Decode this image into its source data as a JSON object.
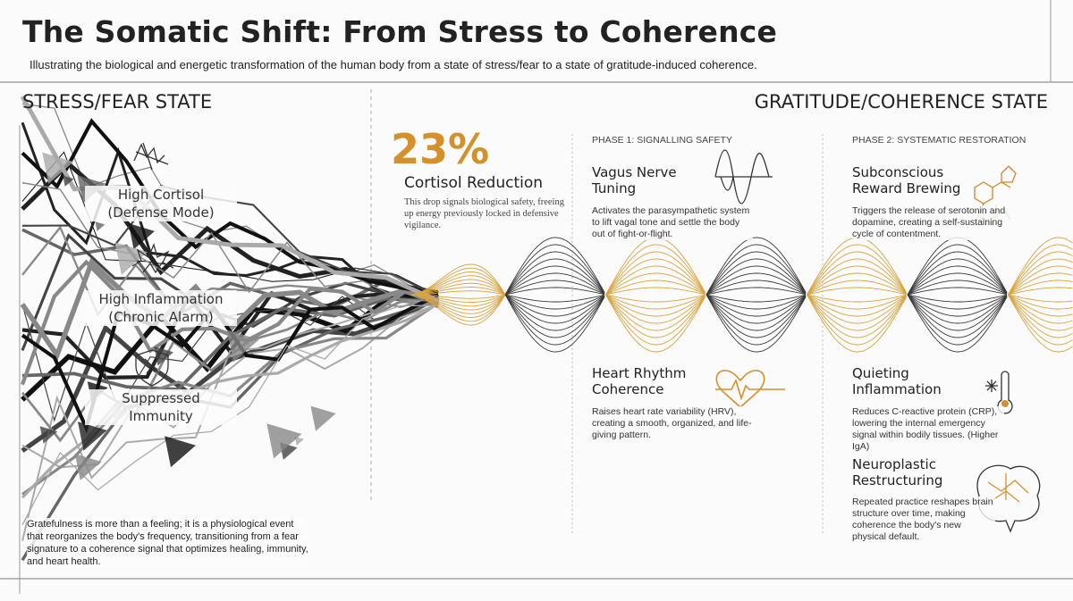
{
  "header": {
    "title": "The Somatic Shift: From Stress to Coherence",
    "subtitle": "Illustrating the biological and energetic transformation of the human body from a state of stress/fear to a state of gratitude-induced coherence."
  },
  "left": {
    "heading": "STRESS/FEAR STATE",
    "items": [
      {
        "lines": [
          "High Cortisol",
          "(Defense Mode)"
        ]
      },
      {
        "lines": [
          "High Inflammation",
          "(Chronic Alarm)"
        ]
      },
      {
        "lines": [
          "Suppressed",
          "Immunity"
        ]
      }
    ],
    "note": "Gratefulness is more than a feeling; it is a physiological event that reorganizes the body's frequency, transitioning from a fear signature to a coherence signal that optimizes healing, immunity, and heart health."
  },
  "right": {
    "heading": "GRATITUDE/COHERENCE STATE",
    "stat": {
      "value": "23%",
      "label": "Cortisol Reduction",
      "text": "This drop signals biological safety, freeing up energy previously locked in defensive vigilance."
    },
    "phases": [
      "PHASE 1: SIGNALLING SAFETY",
      "PHASE 2: SYSTEMATIC RESTORATION"
    ],
    "cards": [
      {
        "title": [
          "Vagus Nerve",
          "Tuning"
        ],
        "text": "Activates the parasympathetic system to lift vagal tone and settle the body out of fight-or-flight."
      },
      {
        "title": [
          "Subconscious",
          "Reward Brewing"
        ],
        "text": "Triggers the release of serotonin and dopamine, creating a self-sustaining cycle of contentment."
      },
      {
        "title": [
          "Heart Rhythm",
          "Coherence"
        ],
        "text": "Raises heart rate variability (HRV), creating a smooth, organized, and life-giving pattern."
      },
      {
        "title": [
          "Quieting",
          "Inflammation"
        ],
        "text": "Reduces C-reactive protein (CRP), lowering the internal emergency signal within bodily tissues. (Higher IgA)"
      },
      {
        "title": [
          "Neuroplastic",
          "Restructuring"
        ],
        "text": "Repeated practice reshapes brain structure over time, making coherence the body's new physical default."
      }
    ]
  }
}
